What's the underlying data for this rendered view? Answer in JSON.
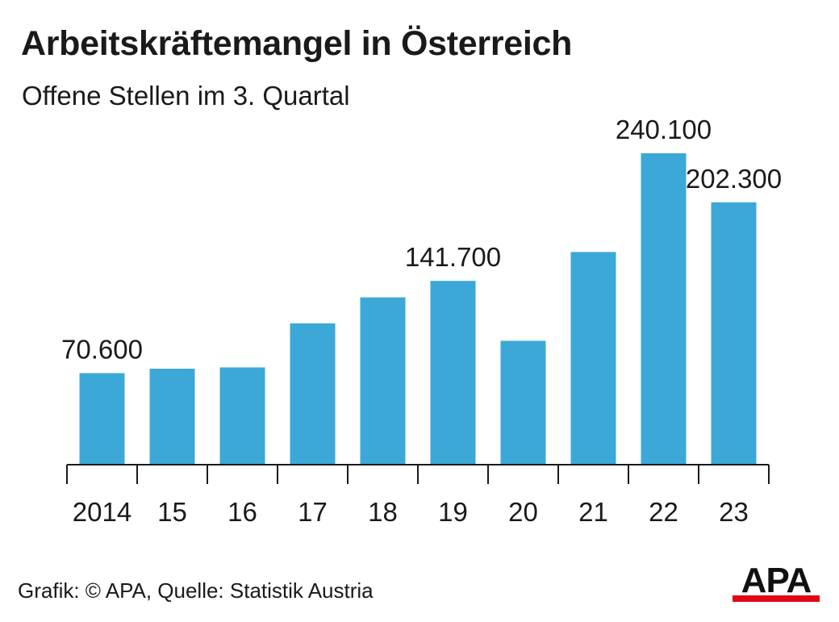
{
  "header": {
    "title": "Arbeitskräftemangel in Österreich",
    "subtitle": "Offene Stellen im 3. Quartal"
  },
  "chart_data": {
    "type": "bar",
    "categories": [
      "2014",
      "15",
      "16",
      "17",
      "18",
      "19",
      "20",
      "21",
      "22",
      "23"
    ],
    "values": [
      70600,
      74000,
      75000,
      109000,
      129000,
      141700,
      95500,
      164000,
      240100,
      202300
    ],
    "data_labels": [
      "70.600",
      "",
      "",
      "",
      "",
      "141.700",
      "",
      "",
      "240.100",
      "202.300"
    ],
    "ylim": [
      0,
      270000
    ],
    "grid": false,
    "bar_color": "#3ca8d8",
    "axis_color": "#1a1a1a"
  },
  "footer": {
    "source": "Grafik: © APA, Quelle: Statistik Austria",
    "logo_text": "APA",
    "logo_color": "#e30613"
  }
}
